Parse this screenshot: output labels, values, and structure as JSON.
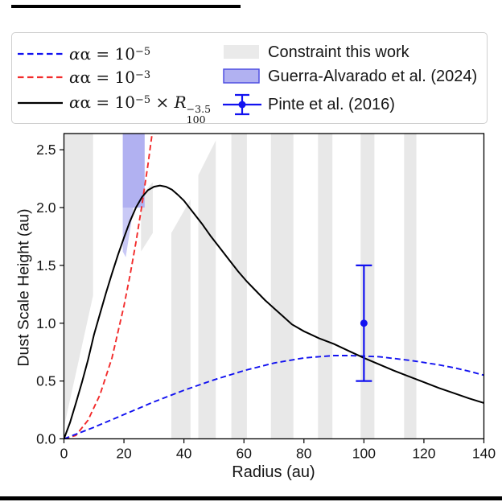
{
  "page": {
    "background": "#ffffff",
    "crop_bar_color": "#000000"
  },
  "legend": {
    "entries_left": [
      {
        "name": "alpha-1e-5",
        "line_style": "dashed",
        "color": "#1212f0",
        "label_prefix": "α = 10",
        "label_sup": "−5"
      },
      {
        "name": "alpha-1e-3",
        "line_style": "dashed",
        "color": "#f22b2b",
        "label_prefix": "α = 10",
        "label_sup": "−3"
      },
      {
        "name": "alpha-profile",
        "line_style": "solid",
        "color": "#000000",
        "label_prefix": "α = 10",
        "label_sup": "−5",
        "label_mid": " × R",
        "label_sub": "100",
        "label_sup2": "−3.5"
      }
    ],
    "entries_right": [
      {
        "type": "patch",
        "fill": "#eaeaea",
        "edge": "none",
        "label": "Constraint this work"
      },
      {
        "type": "patch",
        "fill": "#b1b1f1",
        "edge": "#4848e0",
        "label": "Guerra-Alvarado et al. (2024)"
      },
      {
        "type": "errorbar",
        "color": "#1212f0",
        "label": "Pinte et al. (2016)"
      }
    ]
  },
  "chart_data": {
    "type": "line",
    "xlabel": "Radius (au)",
    "ylabel": "Dust Scale Height (au)",
    "xlim": [
      0,
      140
    ],
    "ylim": [
      0,
      2.64
    ],
    "xticks": [
      "0",
      "20",
      "40",
      "60",
      "80",
      "100",
      "120",
      "140"
    ],
    "yticks": [
      "0.0",
      "0.5",
      "1.0",
      "1.5",
      "2.0",
      "2.5"
    ],
    "grid": false,
    "legend_position": "above plot, two columns, framed",
    "series": [
      {
        "name": "alpha = 10^-5",
        "color": "#1212f0",
        "dashed": true,
        "points": [
          [
            0,
            0
          ],
          [
            10,
            0.1
          ],
          [
            20,
            0.21
          ],
          [
            30,
            0.32
          ],
          [
            40,
            0.42
          ],
          [
            50,
            0.51
          ],
          [
            60,
            0.59
          ],
          [
            70,
            0.655
          ],
          [
            80,
            0.7
          ],
          [
            85,
            0.71
          ],
          [
            90,
            0.72
          ],
          [
            95,
            0.72
          ],
          [
            100,
            0.715
          ],
          [
            105,
            0.71
          ],
          [
            110,
            0.695
          ],
          [
            115,
            0.68
          ],
          [
            120,
            0.66
          ],
          [
            125,
            0.64
          ],
          [
            130,
            0.615
          ],
          [
            135,
            0.585
          ],
          [
            140,
            0.55
          ]
        ]
      },
      {
        "name": "alpha = 10^-3",
        "color": "#f22b2b",
        "dashed": true,
        "points": [
          [
            0,
            0
          ],
          [
            4,
            0.03
          ],
          [
            8,
            0.16
          ],
          [
            12,
            0.38
          ],
          [
            16,
            0.7
          ],
          [
            20,
            1.15
          ],
          [
            22,
            1.41
          ],
          [
            24,
            1.7
          ],
          [
            26,
            2.02
          ],
          [
            28,
            2.37
          ],
          [
            29.5,
            2.66
          ]
        ]
      },
      {
        "name": "alpha = 10^-5 × R_100^-3.5",
        "color": "#000000",
        "dashed": false,
        "points": [
          [
            0,
            0
          ],
          [
            2,
            0.14
          ],
          [
            4,
            0.31
          ],
          [
            6,
            0.49
          ],
          [
            8,
            0.68
          ],
          [
            10,
            0.9
          ],
          [
            12,
            1.08
          ],
          [
            14,
            1.26
          ],
          [
            16,
            1.43
          ],
          [
            18,
            1.59
          ],
          [
            20,
            1.74
          ],
          [
            22,
            1.88
          ],
          [
            24,
            2.0
          ],
          [
            26,
            2.09
          ],
          [
            28,
            2.15
          ],
          [
            30,
            2.18
          ],
          [
            32,
            2.19
          ],
          [
            34,
            2.18
          ],
          [
            36,
            2.155
          ],
          [
            38,
            2.11
          ],
          [
            40,
            2.06
          ],
          [
            43,
            1.96
          ],
          [
            46,
            1.86
          ],
          [
            49,
            1.75
          ],
          [
            52,
            1.65
          ],
          [
            55,
            1.55
          ],
          [
            58,
            1.45
          ],
          [
            61,
            1.36
          ],
          [
            64,
            1.28
          ],
          [
            67,
            1.2
          ],
          [
            70,
            1.13
          ],
          [
            73,
            1.06
          ],
          [
            76,
            0.99
          ],
          [
            80,
            0.93
          ],
          [
            85,
            0.87
          ],
          [
            90,
            0.82
          ],
          [
            95,
            0.76
          ],
          [
            100,
            0.7
          ],
          [
            105,
            0.645
          ],
          [
            110,
            0.59
          ],
          [
            115,
            0.54
          ],
          [
            120,
            0.49
          ],
          [
            125,
            0.44
          ],
          [
            130,
            0.395
          ],
          [
            135,
            0.35
          ],
          [
            140,
            0.31
          ]
        ]
      }
    ],
    "constraint_regions_color": "#e8e8e8",
    "constraint_regions": [
      [
        [
          0,
          0.1
        ],
        [
          0,
          2.64
        ],
        [
          9.7,
          2.64
        ],
        [
          9.7,
          1.24
        ]
      ],
      [
        [
          25.7,
          1.62
        ],
        [
          25.7,
          2.1
        ],
        [
          29.6,
          2.22
        ],
        [
          29.6,
          1.78
        ]
      ],
      [
        [
          35.8,
          0
        ],
        [
          35.8,
          1.78
        ],
        [
          42.2,
          2.07
        ],
        [
          42.2,
          0
        ]
      ],
      [
        [
          44.8,
          0
        ],
        [
          44.8,
          2.28
        ],
        [
          50.6,
          2.58
        ],
        [
          50.6,
          0
        ]
      ],
      [
        [
          55.8,
          0
        ],
        [
          55.8,
          2.64
        ],
        [
          61.0,
          2.64
        ],
        [
          61.0,
          0
        ]
      ],
      [
        [
          69.0,
          0
        ],
        [
          69.0,
          2.64
        ],
        [
          76.5,
          2.64
        ],
        [
          76.5,
          0
        ]
      ],
      [
        [
          84.7,
          0
        ],
        [
          84.7,
          2.64
        ],
        [
          89.5,
          2.64
        ],
        [
          89.5,
          0
        ]
      ],
      [
        [
          98.9,
          0
        ],
        [
          98.9,
          2.64
        ],
        [
          103.5,
          2.64
        ],
        [
          103.5,
          0
        ]
      ],
      [
        [
          113.4,
          0
        ],
        [
          113.4,
          2.64
        ],
        [
          117.5,
          2.64
        ],
        [
          117.5,
          0
        ]
      ]
    ],
    "guerra_region": {
      "fill": "#b1b1f1",
      "wedge_fill": "#c9c9f6",
      "solid": [
        [
          19.6,
          2.0
        ],
        [
          19.6,
          2.64
        ],
        [
          26.9,
          2.64
        ],
        [
          26.9,
          2.0
        ]
      ],
      "wedge": [
        [
          19.6,
          2.0
        ],
        [
          23.2,
          2.0
        ],
        [
          20.6,
          1.57
        ],
        [
          19.6,
          1.62
        ]
      ]
    },
    "pinte_point": {
      "x": 100,
      "y": 1.0,
      "y_low": 0.5,
      "y_high": 1.5,
      "color": "#1212f0"
    }
  }
}
